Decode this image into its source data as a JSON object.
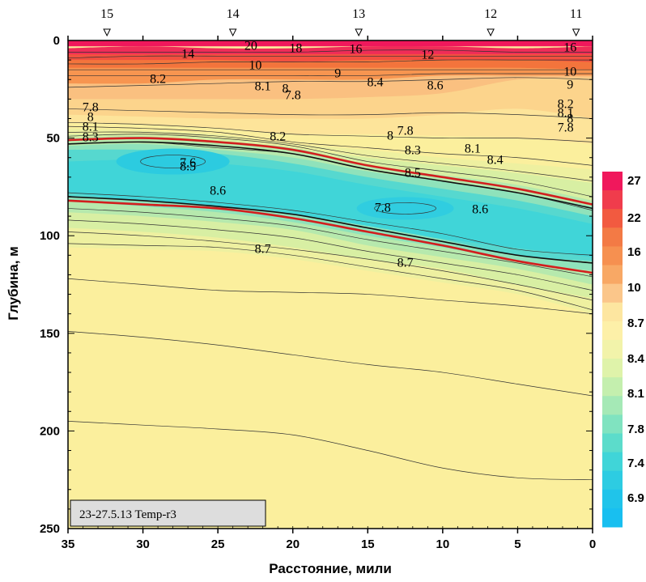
{
  "chart_data": {
    "type": "contour",
    "xlabel": "Расстояние, мили",
    "ylabel": "Глубина, м",
    "xlim": [
      35,
      0
    ],
    "ylim": [
      0,
      250
    ],
    "x_ticks": [
      35,
      30,
      25,
      20,
      15,
      10,
      5,
      0
    ],
    "y_ticks": [
      0,
      50,
      100,
      150,
      200,
      250
    ],
    "stations": [
      {
        "name": "15",
        "x": 32.4
      },
      {
        "name": "14",
        "x": 24.0
      },
      {
        "name": "13",
        "x": 15.6
      },
      {
        "name": "12",
        "x": 6.8
      },
      {
        "name": "11",
        "x": 1.1
      }
    ],
    "note": "23-27.5.13 Temp-r3",
    "colorbar": {
      "labels": [
        "27",
        "22",
        "16",
        "10",
        "8.7",
        "8.4",
        "8.1",
        "7.8",
        "7.4",
        "6.9"
      ],
      "bands": [
        {
          "value": 27,
          "color": "#f0185c"
        },
        {
          "value": 24,
          "color": "#f03c4c"
        },
        {
          "value": 22,
          "color": "#f25a40"
        },
        {
          "value": 19,
          "color": "#f37a45"
        },
        {
          "value": 16,
          "color": "#f69050"
        },
        {
          "value": 13,
          "color": "#f8a865"
        },
        {
          "value": 10,
          "color": "#fbc68a"
        },
        {
          "value": 9,
          "color": "#fde6a0"
        },
        {
          "value": 8.7,
          "color": "#fdf0a8"
        },
        {
          "value": 8.55,
          "color": "#f2f3aa"
        },
        {
          "value": 8.4,
          "color": "#dff3aa"
        },
        {
          "value": 8.25,
          "color": "#c4efae"
        },
        {
          "value": 8.1,
          "color": "#a5e9b6"
        },
        {
          "value": 7.95,
          "color": "#80e3c0"
        },
        {
          "value": 7.8,
          "color": "#5cdccb"
        },
        {
          "value": 7.6,
          "color": "#40d5d8"
        },
        {
          "value": 7.4,
          "color": "#2dcce2"
        },
        {
          "value": 7.1,
          "color": "#20c4ea"
        },
        {
          "value": 6.9,
          "color": "#18bff0"
        }
      ]
    },
    "bands": [
      {
        "value": 22,
        "color": "#f02c58",
        "depth": [
          4,
          3,
          4,
          4,
          3,
          3,
          4,
          3
        ]
      },
      {
        "value": 19,
        "color": "#f25040",
        "depth": [
          7,
          7,
          7,
          7,
          7,
          7,
          7,
          7
        ]
      },
      {
        "value": 16,
        "color": "#f3743c",
        "depth": [
          10,
          10,
          10,
          11,
          10,
          10,
          10,
          11
        ]
      },
      {
        "value": 13,
        "color": "#f79550",
        "depth": [
          14,
          14,
          14,
          14,
          14,
          14,
          14,
          15
        ]
      },
      {
        "value": 10,
        "color": "#fac080",
        "depth": [
          22,
          22,
          20,
          20,
          20,
          18,
          18,
          18
        ]
      },
      {
        "value": 9.3,
        "color": "#fcd48c",
        "depth": [
          30,
          30,
          30,
          30,
          29,
          27,
          20,
          19
        ]
      },
      {
        "value": 9,
        "color": "#fde49a",
        "depth": [
          38,
          39,
          40,
          40,
          40,
          38,
          35,
          40
        ]
      },
      {
        "value": 8.6,
        "color": "#fbef9d",
        "depth": [
          42,
          43,
          45,
          48,
          48,
          49,
          50,
          53
        ]
      },
      {
        "value": 8.4,
        "color": "#eef0a0",
        "depth": [
          45,
          46,
          48,
          53,
          56,
          60,
          63,
          66
        ]
      },
      {
        "value": 8.25,
        "color": "#d8efa3",
        "depth": [
          48,
          48,
          50,
          55,
          60,
          64,
          68,
          73
        ]
      },
      {
        "value": 8.1,
        "color": "#b6e9ad",
        "depth": [
          50,
          49,
          52,
          55,
          64,
          69,
          74,
          82
        ]
      },
      {
        "value": 8,
        "color": "#8fe2bb",
        "depth": [
          54,
          53,
          56,
          60,
          67,
          72,
          78,
          85
        ]
      },
      {
        "value": 7.8,
        "color": "#56d8cf",
        "depth": [
          56,
          56,
          58,
          63,
          70,
          76,
          82,
          90
        ]
      }
    ],
    "lower_bands": [
      {
        "value": 7.8,
        "color": "#8fe2bb",
        "depth": [
          80,
          82,
          85,
          89,
          95,
          102,
          110,
          113
        ]
      },
      {
        "value": 8,
        "color": "#b6e9ad",
        "depth": [
          82,
          85,
          88,
          93,
          100,
          106,
          113,
          118
        ]
      },
      {
        "value": 8.1,
        "color": "#d8efa3",
        "depth": [
          88,
          90,
          93,
          97,
          105,
          111,
          117,
          125
        ]
      },
      {
        "value": 8.3,
        "color": "#eef0a0",
        "depth": [
          96,
          98,
          101,
          106,
          112,
          117,
          125,
          132
        ]
      },
      {
        "value": 8.4,
        "color": "#fbef9d",
        "depth": [
          106,
          107,
          108,
          112,
          118,
          124,
          130,
          140
        ]
      }
    ],
    "contours": [
      {
        "level": "20",
        "depth": [
          6,
          6,
          6,
          6,
          5,
          5,
          6,
          6
        ]
      },
      {
        "level": "18",
        "depth": [
          9,
          8,
          8,
          8,
          8,
          8,
          8,
          8
        ]
      },
      {
        "level": "16",
        "depth": [
          12,
          12,
          11,
          11,
          11,
          10,
          10,
          10
        ]
      },
      {
        "level": "14",
        "depth": [
          15,
          15,
          15,
          15,
          15,
          15,
          15,
          15
        ]
      },
      {
        "level": "12",
        "depth": [
          18,
          18,
          18,
          18,
          18,
          17,
          17,
          17
        ]
      },
      {
        "level": "10",
        "depth": [
          24,
          23,
          22,
          21,
          21,
          20,
          19,
          20
        ]
      },
      {
        "level": "9",
        "depth": [
          35,
          36,
          37,
          38,
          38,
          37,
          38,
          40
        ]
      },
      {
        "level": "8.6",
        "depth": [
          42,
          43,
          45,
          48,
          49,
          50,
          50,
          52
        ]
      },
      {
        "level": "8.4",
        "depth": [
          44,
          45,
          47,
          52,
          55,
          58,
          60,
          64
        ]
      },
      {
        "level": "8.2",
        "depth": [
          47,
          47,
          49,
          53,
          59,
          63,
          67,
          72
        ]
      },
      {
        "level": "8.1",
        "depth": [
          49,
          48,
          50,
          54,
          62,
          67,
          72,
          80
        ]
      },
      {
        "level": "7.8",
        "depth": [
          53,
          52,
          55,
          58,
          66,
          72,
          78,
          87
        ]
      },
      {
        "level": "7.8",
        "depth": [
          78,
          80,
          83,
          87,
          93,
          99,
          107,
          110
        ]
      },
      {
        "level": "8.1",
        "depth": [
          86,
          88,
          91,
          95,
          102,
          108,
          114,
          121
        ]
      },
      {
        "level": "8.2",
        "depth": [
          92,
          94,
          97,
          101,
          108,
          114,
          120,
          128
        ]
      },
      {
        "level": "8.3",
        "depth": [
          98,
          100,
          103,
          107,
          112,
          118,
          125,
          133
        ]
      },
      {
        "level": "8.4",
        "depth": [
          104,
          105,
          106,
          110,
          116,
          122,
          128,
          138
        ]
      },
      {
        "level": "8.5",
        "depth": [
          122,
          125,
          128,
          129,
          130,
          133,
          136,
          140
        ]
      },
      {
        "level": "8.6",
        "depth": [
          149,
          152,
          156,
          161,
          166,
          170,
          176,
          182
        ]
      },
      {
        "level": "8.7",
        "depth": [
          195,
          197,
          199,
          202,
          210,
          219,
          224,
          225
        ]
      }
    ],
    "red_contours": [
      {
        "level": "8",
        "depth": [
          51,
          50,
          52,
          56,
          64,
          70,
          76,
          84
        ]
      },
      {
        "level": "8",
        "depth": [
          82,
          84,
          86,
          91,
          98,
          105,
          113,
          119
        ]
      }
    ],
    "dark_contours": [
      {
        "level": "8",
        "depth": [
          53,
          52,
          54,
          58,
          66,
          72,
          78,
          86
        ]
      },
      {
        "level": "8",
        "depth": [
          80,
          82,
          85,
          89,
          96,
          103,
          110,
          114
        ]
      }
    ],
    "cold_core_labels": [
      {
        "text": "7.6",
        "x": 27,
        "y": 63
      },
      {
        "text": "7.8",
        "x": 14,
        "y": 86
      }
    ],
    "contour_labels": [
      {
        "text": "20",
        "x": 22.8,
        "y": 8
      },
      {
        "text": "18",
        "x": 19.8,
        "y": 11
      },
      {
        "text": "16",
        "x": 15.8,
        "y": 12
      },
      {
        "text": "12",
        "x": 11.0,
        "y": 19
      },
      {
        "text": "16",
        "x": 1.5,
        "y": 10
      },
      {
        "text": "14",
        "x": 27.0,
        "y": 18
      },
      {
        "text": "10",
        "x": 22.5,
        "y": 32
      },
      {
        "text": "9",
        "x": 17.0,
        "y": 42
      },
      {
        "text": "10",
        "x": 1.5,
        "y": 40
      },
      {
        "text": "9",
        "x": 1.5,
        "y": 56
      },
      {
        "text": "8.2",
        "x": 29.0,
        "y": 49
      },
      {
        "text": "8.4",
        "x": 14.5,
        "y": 53
      },
      {
        "text": "8.6",
        "x": 10.5,
        "y": 57
      },
      {
        "text": "8.1",
        "x": 22.0,
        "y": 58
      },
      {
        "text": "8",
        "x": 20.5,
        "y": 61
      },
      {
        "text": "7.8",
        "x": 20.0,
        "y": 69
      },
      {
        "text": "7.8",
        "x": 33.5,
        "y": 84
      },
      {
        "text": "8",
        "x": 33.5,
        "y": 96
      },
      {
        "text": "8.1",
        "x": 33.5,
        "y": 108
      },
      {
        "text": "8.3",
        "x": 33.5,
        "y": 121
      },
      {
        "text": "8.2",
        "x": 1.8,
        "y": 80
      },
      {
        "text": "8.1",
        "x": 1.8,
        "y": 91
      },
      {
        "text": "8",
        "x": 1.5,
        "y": 98
      },
      {
        "text": "7.8",
        "x": 1.8,
        "y": 109
      },
      {
        "text": "8.2",
        "x": 21.0,
        "y": 120
      },
      {
        "text": "7.8",
        "x": 12.5,
        "y": 113
      },
      {
        "text": "8",
        "x": 13.5,
        "y": 119
      },
      {
        "text": "8.1",
        "x": 8.0,
        "y": 135
      },
      {
        "text": "8.3",
        "x": 12.0,
        "y": 137
      },
      {
        "text": "8.4",
        "x": 6.5,
        "y": 149
      },
      {
        "text": "8.5",
        "x": 27.0,
        "y": 157
      },
      {
        "text": "8.5",
        "x": 12.0,
        "y": 165
      },
      {
        "text": "8.6",
        "x": 25.0,
        "y": 187
      },
      {
        "text": "8.6",
        "x": 7.5,
        "y": 210
      },
      {
        "text": "8.7",
        "x": 22.0,
        "y": 259
      },
      {
        "text": "8.7",
        "x": 12.5,
        "y": 276
      }
    ]
  }
}
